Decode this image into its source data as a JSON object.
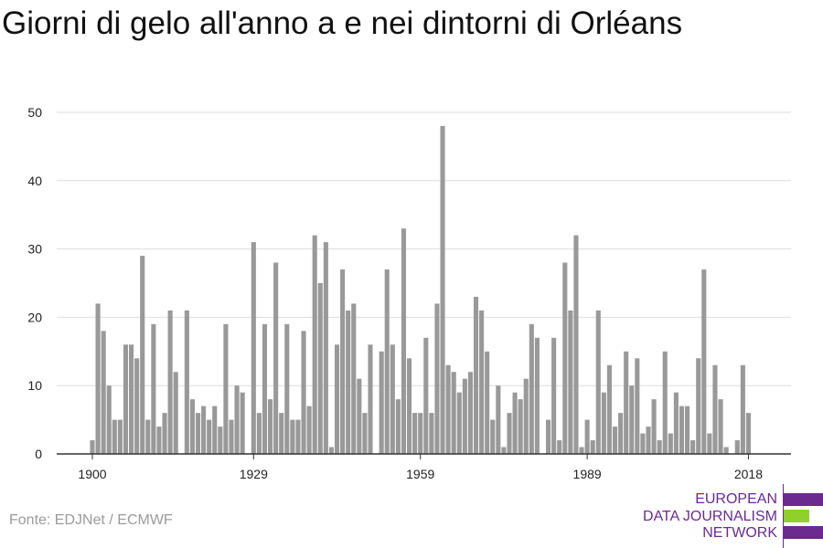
{
  "title": "Giorni di gelo all'anno a e nei dintorni di Orléans",
  "source": "Fonte: EDJNet / ECMWF",
  "logo": {
    "lines": [
      "EUROPEAN",
      "DATA JOURNALISM",
      "NETWORK"
    ],
    "colors": {
      "purple": "#6a2a8f",
      "green": "#8fd12a"
    }
  },
  "chart_data": {
    "type": "bar",
    "title": "Giorni di gelo all'anno a e nei dintorni di Orléans",
    "xlabel": "",
    "ylabel": "",
    "x_start": 1900,
    "x_end": 2018,
    "x_ticks": [
      "1900",
      "1929",
      "1959",
      "1989",
      "2018"
    ],
    "y_ticks": [
      "0",
      "10",
      "20",
      "30",
      "40",
      "50"
    ],
    "ylim": [
      0,
      50
    ],
    "grid": true,
    "bar_color": "#999999",
    "values": [
      2,
      22,
      18,
      10,
      5,
      5,
      16,
      16,
      14,
      29,
      5,
      19,
      4,
      6,
      21,
      12,
      0,
      21,
      8,
      6,
      7,
      5,
      7,
      4,
      19,
      5,
      10,
      9,
      0,
      31,
      6,
      19,
      8,
      28,
      6,
      19,
      5,
      5,
      18,
      7,
      32,
      25,
      31,
      1,
      16,
      27,
      21,
      22,
      11,
      6,
      16,
      0,
      15,
      27,
      16,
      8,
      33,
      14,
      6,
      6,
      17,
      6,
      22,
      48,
      13,
      12,
      9,
      11,
      12,
      23,
      21,
      15,
      5,
      10,
      1,
      6,
      9,
      8,
      11,
      19,
      17,
      0,
      5,
      17,
      2,
      28,
      21,
      32,
      1,
      5,
      2,
      21,
      9,
      13,
      4,
      6,
      15,
      10,
      14,
      3,
      4,
      8,
      2,
      15,
      3,
      9,
      7,
      7,
      2,
      14,
      27,
      3,
      13,
      8,
      1,
      0,
      2,
      13,
      6
    ]
  }
}
